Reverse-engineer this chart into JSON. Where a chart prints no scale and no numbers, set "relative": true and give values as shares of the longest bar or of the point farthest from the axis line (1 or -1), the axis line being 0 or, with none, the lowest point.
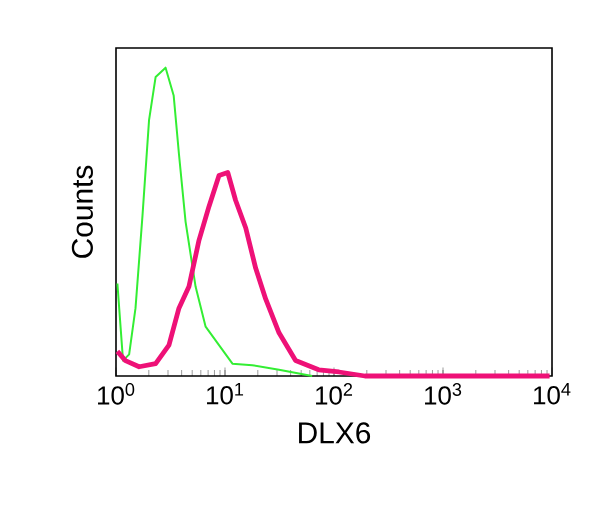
{
  "chart_data": {
    "type": "line",
    "relative": true,
    "xlabel": "DLX6",
    "ylabel": "Counts",
    "log": "x",
    "tick_labels": "x",
    "grid": false,
    "marker": "none",
    "xlim": [
      1,
      10000
    ],
    "xticks": [
      {
        "value": 1,
        "label": "10$^{0}$"
      },
      {
        "value": 10,
        "label": "10$^{1}$"
      },
      {
        "value": 100,
        "label": "10$^{2}$"
      },
      {
        "value": 1000,
        "label": "10$^{3}$"
      },
      {
        "value": 10000,
        "label": "10$^{4}$"
      }
    ],
    "series": [
      {
        "color": "#33ee33",
        "x": [
          1.03,
          1.16,
          1.32,
          1.51,
          1.75,
          2.01,
          2.31,
          2.85,
          3.38,
          3.78,
          4.35,
          5.37,
          6.64,
          8.81,
          11.7,
          17.8,
          31.3,
          63
        ],
        "values": [
          0.3,
          0.05,
          0.07,
          0.22,
          0.52,
          0.83,
          0.97,
          1.0,
          0.91,
          0.72,
          0.5,
          0.29,
          0.16,
          0.1,
          0.04,
          0.035,
          0.02,
          0
        ]
      },
      {
        "color": "#ee1177",
        "x": [
          1.03,
          1.22,
          1.63,
          2.31,
          3.06,
          3.78,
          4.67,
          5.77,
          7.13,
          8.81,
          10.6,
          12.5,
          15.5,
          19.1,
          23.6,
          31.3,
          44.4,
          72.4,
          111,
          192,
          9500
        ],
        "values": [
          0.08,
          0.05,
          0.03,
          0.04,
          0.1,
          0.22,
          0.29,
          0.44,
          0.55,
          0.65,
          0.66,
          0.57,
          0.48,
          0.35,
          0.25,
          0.14,
          0.05,
          0.02,
          0.013,
          0,
          0
        ]
      }
    ]
  }
}
